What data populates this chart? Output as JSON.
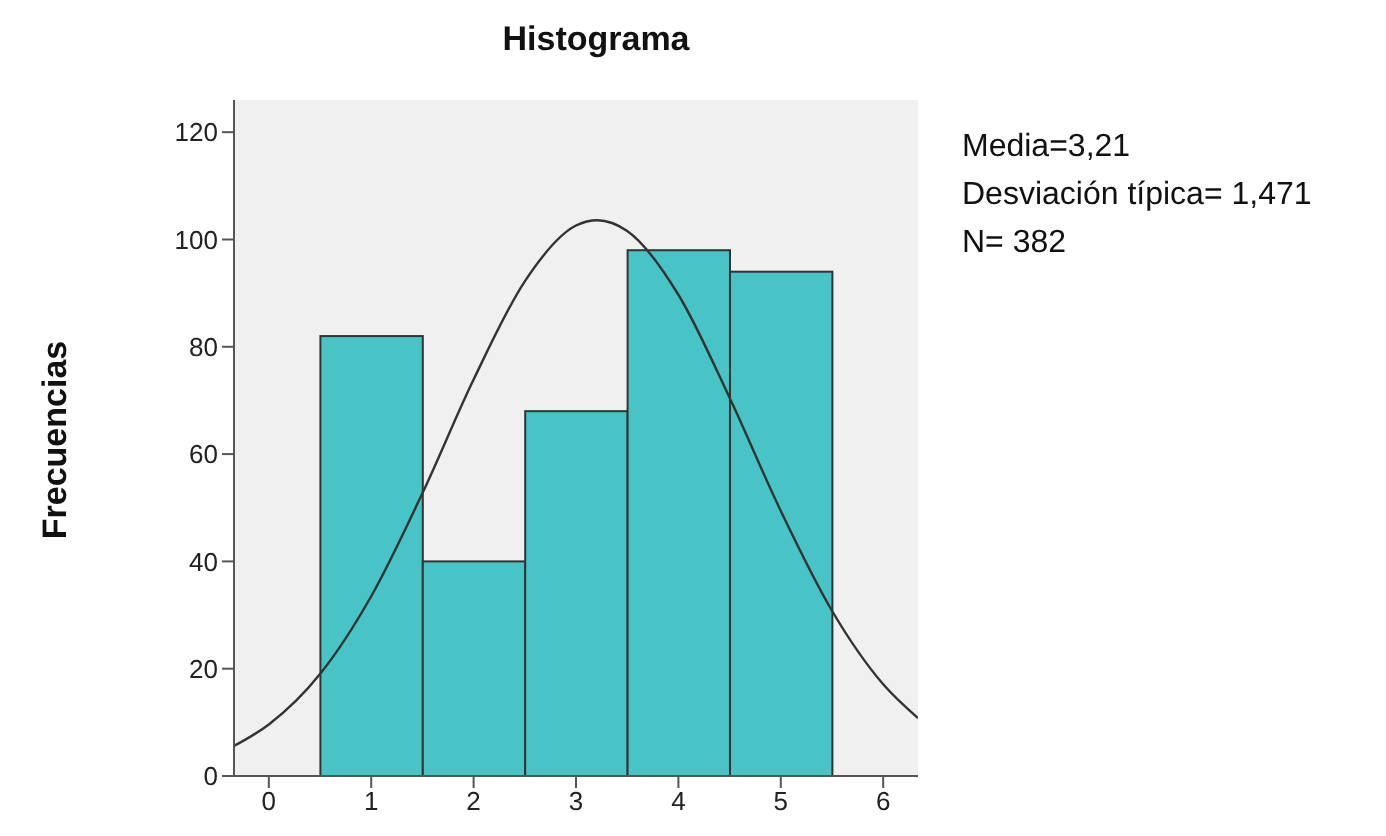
{
  "chart_data": {
    "type": "histogram",
    "title": "Histograma",
    "ylabel": "Frecuencias",
    "bins": [
      0.5,
      1.5,
      2.5,
      3.5,
      4.5,
      5.5
    ],
    "values": [
      82,
      40,
      68,
      98,
      94
    ],
    "color": "#48c4c6",
    "series": [
      {
        "type": "line",
        "color": "#333333",
        "x": [
          -0.34,
          0,
          0.5,
          1,
          1.5,
          2,
          2.5,
          3,
          3.21,
          3.5,
          4,
          4.5,
          5,
          5.5,
          6,
          6.34
        ],
        "values": [
          5.6,
          9.6,
          19.0,
          33.5,
          52.7,
          73.9,
          92.2,
          102.6,
          103.6,
          101.6,
          89.7,
          70.5,
          49.4,
          30.8,
          17.1,
          10.8
        ]
      }
    ],
    "xlim": [
      -0.34,
      6.34
    ],
    "xticks": [
      0,
      1,
      2,
      3,
      4,
      5,
      6
    ],
    "ylim": [
      0,
      126
    ],
    "yticks": [
      0,
      20,
      40,
      60,
      80,
      100,
      120
    ],
    "grid": false,
    "marker": "none",
    "annotations": [
      "Media=3,21",
      "Desviación típica= 1,471",
      "N= 382"
    ]
  }
}
